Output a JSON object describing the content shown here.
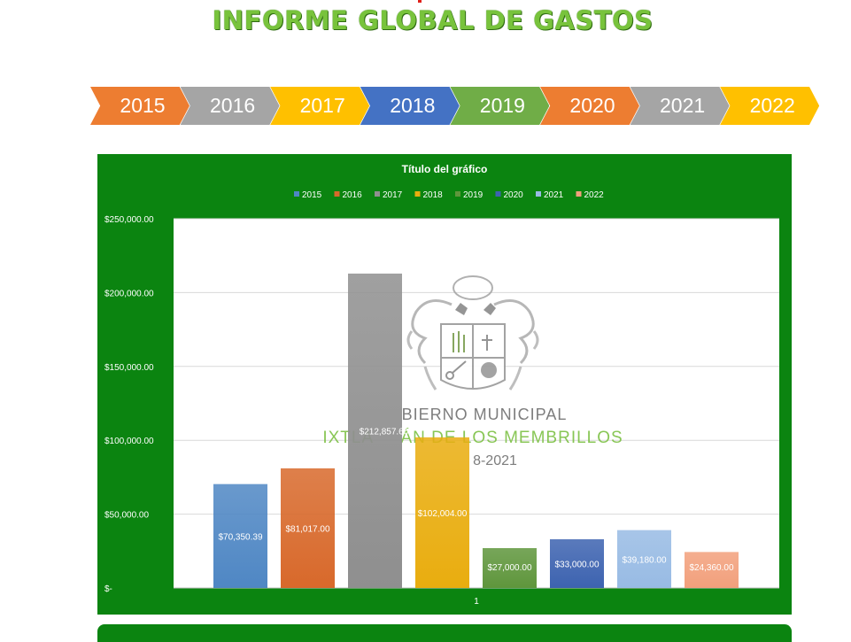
{
  "header": {
    "title": "INFORME GLOBAL  DE GASTOS"
  },
  "year_tabs": [
    {
      "label": "2015",
      "color": "#ed7d31"
    },
    {
      "label": "2016",
      "color": "#a5a5a5"
    },
    {
      "label": "2017",
      "color": "#ffc000"
    },
    {
      "label": "2018",
      "color": "#4472c4"
    },
    {
      "label": "2019",
      "color": "#70ad47"
    },
    {
      "label": "2020",
      "color": "#ed7d31"
    },
    {
      "label": "2021",
      "color": "#a5a5a5"
    },
    {
      "label": "2022",
      "color": "#ffc000"
    }
  ],
  "watermark": {
    "line1": "BIERNO MUNICIPAL",
    "line2": "IXTLA     ÁN DE LOS MEMBRILLOS",
    "line3": "8-2021"
  },
  "chart_data": {
    "type": "bar",
    "title": "Título del gráfico",
    "categories": [
      "1"
    ],
    "ylim": [
      0,
      250000
    ],
    "y_ticks": [
      {
        "value": 0,
        "label": "$-"
      },
      {
        "value": 50000,
        "label": "$50,000.00"
      },
      {
        "value": 100000,
        "label": "$100,000.00"
      },
      {
        "value": 150000,
        "label": "$150,000.00"
      },
      {
        "value": 200000,
        "label": "$200,000.00"
      },
      {
        "value": 250000,
        "label": "$250,000.00"
      }
    ],
    "grid": true,
    "legend_position": "top",
    "series": [
      {
        "name": "2015",
        "values": [
          70350.39
        ],
        "label": "$70,350.39",
        "color": "#4f87c4"
      },
      {
        "name": "2016",
        "values": [
          81017.0
        ],
        "label": "$81,017.00",
        "color": "#d8692b"
      },
      {
        "name": "2017",
        "values": [
          212857.6
        ],
        "label": "$212,857.60",
        "color": "#8f8f8f"
      },
      {
        "name": "2018",
        "values": [
          102004.0
        ],
        "label": "$102,004.00",
        "color": "#e9ad0f"
      },
      {
        "name": "2019",
        "values": [
          27000.0
        ],
        "label": "$27,000.00",
        "color": "#5f963c"
      },
      {
        "name": "2020",
        "values": [
          33000.0
        ],
        "label": "$33,000.00",
        "color": "#3d63b0"
      },
      {
        "name": "2021",
        "values": [
          39180.0
        ],
        "label": "$39,180.00",
        "color": "#98bbe4"
      },
      {
        "name": "2022",
        "values": [
          24360.0
        ],
        "label": "$24,360.00",
        "color": "#f2a07c"
      }
    ]
  }
}
